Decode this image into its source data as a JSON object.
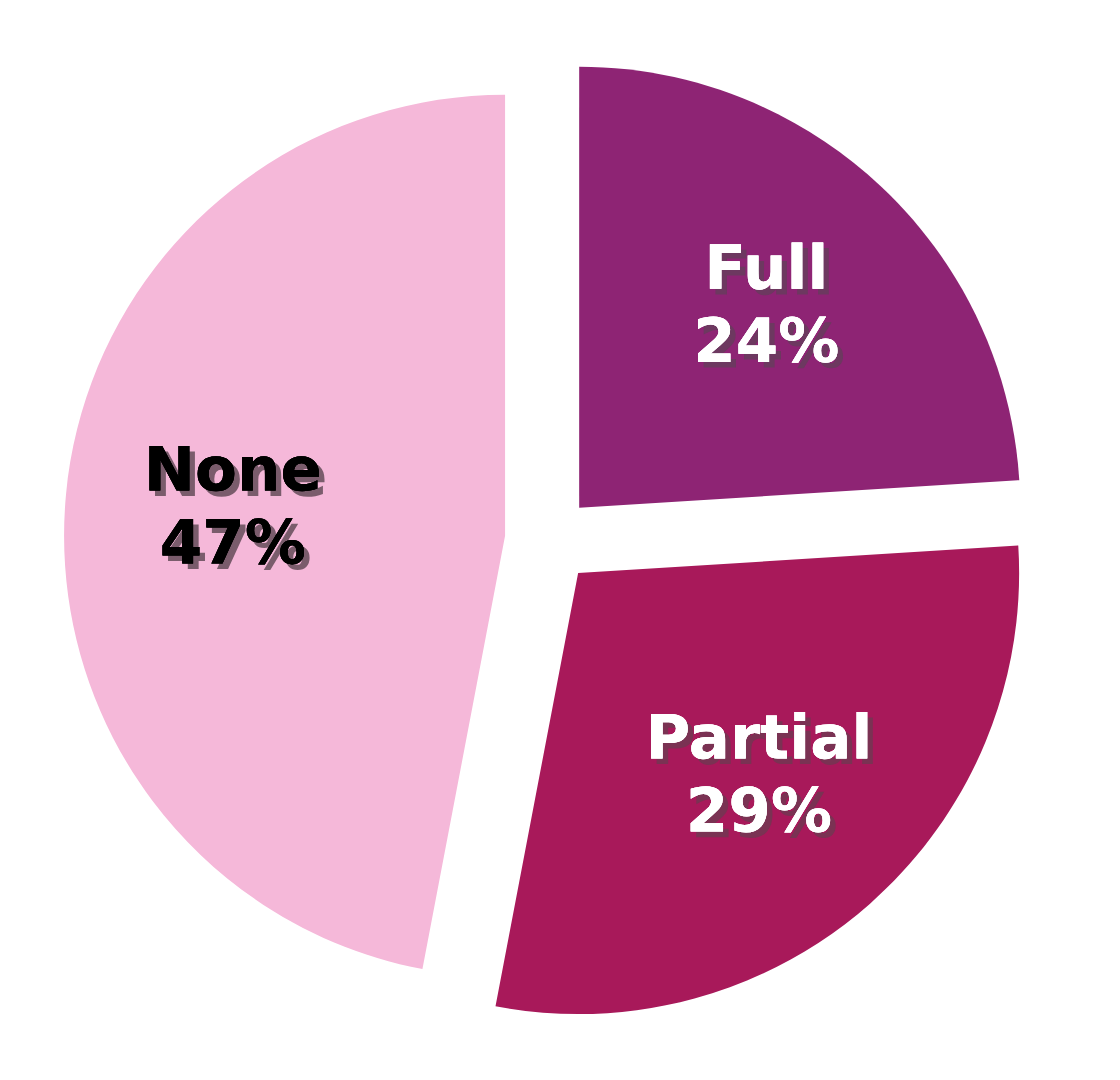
{
  "chart_data": {
    "type": "pie",
    "categories": [
      "Full",
      "Partial",
      "None"
    ],
    "values": [
      24,
      29,
      47
    ],
    "colors": [
      "#8e2474",
      "#a8195a",
      "#f5b8d9"
    ],
    "value_labels": [
      "24%",
      "29%",
      "47%"
    ]
  }
}
